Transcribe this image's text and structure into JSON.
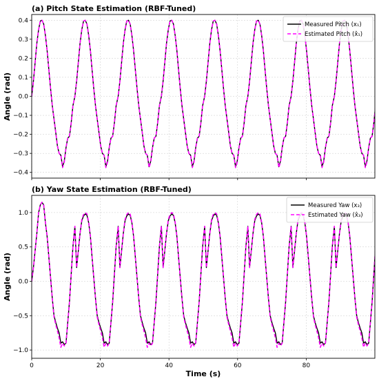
{
  "figure": {
    "xlabel": "Time (s)"
  },
  "chart_data": [
    {
      "type": "line",
      "title": "(a) Pitch State Estimation (RBF-Tuned)",
      "xlabel": "",
      "ylabel": "Angle (rad)",
      "xlim": [
        0,
        100
      ],
      "ylim": [
        -0.43,
        0.43
      ],
      "xticks": [
        0,
        20,
        40,
        60,
        80
      ],
      "xtick_labels": [
        "",
        "",
        "",
        "",
        ""
      ],
      "yticks": [
        -0.4,
        -0.3,
        -0.2,
        -0.1,
        0.0,
        0.1,
        0.2,
        0.3,
        0.4
      ],
      "ytick_labels": [
        "−0.4",
        "−0.3",
        "−0.2",
        "−0.1",
        "0.0",
        "0.1",
        "0.2",
        "0.3",
        "0.4"
      ],
      "grid": true,
      "legend_position": "top-right",
      "period": 12.6,
      "series": [
        {
          "name": "Measured Pitch (x₁)",
          "color": "#000000",
          "style": "solid",
          "x": [
            0,
            0.5,
            1,
            1.5,
            2,
            2.5,
            3,
            3.5,
            4,
            4.5,
            5,
            5.5,
            6,
            6.5,
            7,
            7.5,
            8,
            8.5,
            9,
            9.5,
            10,
            10.5,
            11,
            11.5,
            12,
            12.6
          ],
          "y": [
            0.0,
            0.08,
            0.18,
            0.28,
            0.35,
            0.395,
            0.4,
            0.38,
            0.32,
            0.24,
            0.14,
            0.04,
            -0.05,
            -0.12,
            -0.19,
            -0.26,
            -0.3,
            -0.31,
            -0.37,
            -0.34,
            -0.27,
            -0.22,
            -0.21,
            -0.14,
            -0.05,
            0.0
          ]
        },
        {
          "name": "Estimated Pitch (x̂₁)",
          "color": "#ff00ff",
          "style": "dashed",
          "x": [
            0,
            0.5,
            1,
            1.5,
            2,
            2.5,
            3,
            3.5,
            4,
            4.5,
            5,
            5.5,
            6,
            6.5,
            7,
            7.5,
            8,
            8.5,
            9,
            9.5,
            10,
            10.5,
            11,
            11.5,
            12,
            12.6
          ],
          "y": [
            0.0,
            0.08,
            0.18,
            0.28,
            0.35,
            0.395,
            0.4,
            0.38,
            0.32,
            0.24,
            0.14,
            0.04,
            -0.05,
            -0.12,
            -0.19,
            -0.26,
            -0.3,
            -0.31,
            -0.375,
            -0.345,
            -0.27,
            -0.22,
            -0.21,
            -0.14,
            -0.05,
            0.0
          ]
        }
      ]
    },
    {
      "type": "line",
      "title": "(b) Yaw State Estimation (RBF-Tuned)",
      "xlabel": "Time (s)",
      "ylabel": "Angle (rad)",
      "xlim": [
        0,
        100
      ],
      "ylim": [
        -1.12,
        1.25
      ],
      "xticks": [
        0,
        20,
        40,
        60,
        80
      ],
      "xtick_labels": [
        "0",
        "20",
        "40",
        "60",
        "80"
      ],
      "yticks": [
        -1.0,
        -0.5,
        0.0,
        0.5,
        1.0
      ],
      "ytick_labels": [
        "−1.0",
        "−0.5",
        "0.0",
        "0.5",
        "1.0"
      ],
      "grid": true,
      "legend_position": "top-right",
      "period": 12.6,
      "first_peak": 1.15,
      "series": [
        {
          "name": "Measured Yaw (x₃)",
          "color": "#000000",
          "style": "solid",
          "x": [
            0,
            0.5,
            1,
            1.5,
            2,
            2.5,
            3,
            3.5,
            4,
            4.5,
            5,
            5.5,
            6,
            6.5,
            7,
            7.5,
            8,
            8.5,
            9,
            9.5,
            10,
            10.5,
            11,
            11.5,
            12,
            12.6
          ],
          "y": [
            0.0,
            0.2,
            0.45,
            0.7,
            0.88,
            0.95,
            0.98,
            0.96,
            0.85,
            0.65,
            0.35,
            0.05,
            -0.25,
            -0.5,
            -0.6,
            -0.68,
            -0.75,
            -0.9,
            -0.88,
            -0.92,
            -0.9,
            -0.6,
            -0.3,
            0.1,
            0.5,
            0.8
          ]
        },
        {
          "name": "Estimated Yaw (x̂₃)",
          "color": "#ff00ff",
          "style": "dashed",
          "x": [
            0,
            0.5,
            1,
            1.5,
            2,
            2.5,
            3,
            3.5,
            4,
            4.5,
            5,
            5.5,
            6,
            6.5,
            7,
            7.5,
            8,
            8.5,
            9,
            9.5,
            10,
            10.5,
            11,
            11.5,
            12,
            12.6
          ],
          "y": [
            0.0,
            0.2,
            0.45,
            0.7,
            0.9,
            0.97,
            1.0,
            0.98,
            0.86,
            0.66,
            0.36,
            0.05,
            -0.25,
            -0.52,
            -0.63,
            -0.72,
            -0.82,
            -0.96,
            -0.9,
            -0.94,
            -0.9,
            -0.6,
            -0.3,
            0.1,
            0.5,
            0.8
          ]
        }
      ]
    }
  ]
}
